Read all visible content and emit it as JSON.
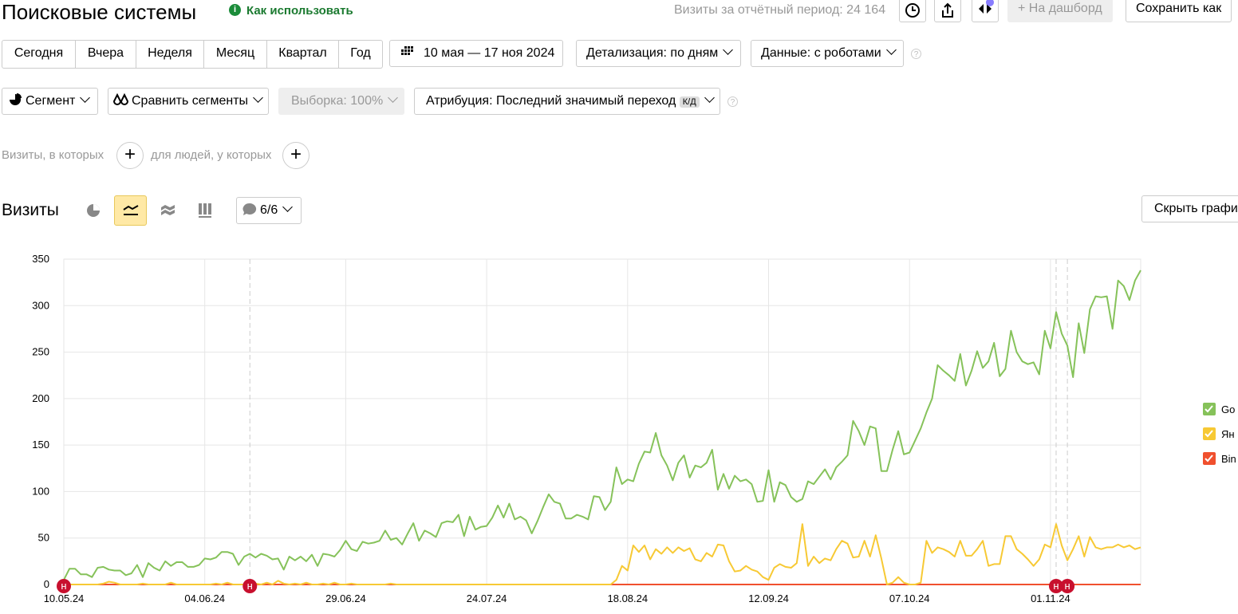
{
  "header": {
    "title": "Поисковые системы",
    "help": "Как использовать",
    "visits": "Визиты за отчётный период: 24 164",
    "dashboard": "На дашборд",
    "save": "Сохранить как"
  },
  "toolbar": {
    "periods": [
      "Сегодня",
      "Вчера",
      "Неделя",
      "Месяц",
      "Квартал",
      "Год"
    ],
    "dates": "10 мая — 17 ноя 2024",
    "detail": "Детализация: по дням",
    "robots": "Данные: с роботами"
  },
  "segments": {
    "segment": "Сегмент",
    "compare": "Сравнить сегменты",
    "sample": "Выборка: 100%",
    "attribution": "Атрибуция: Последний значимый переход",
    "badge": "К/Д"
  },
  "filters": {
    "visits": "Визиты, в которых",
    "people": "для людей, у которых"
  },
  "panel": {
    "title": "Визиты",
    "notes": "6/6",
    "hide": "Скрыть графи"
  },
  "chart_data": {
    "type": "line",
    "categories": [
      "10.05.24",
      null,
      null,
      null,
      null,
      null,
      null,
      null,
      null,
      null,
      null,
      null,
      null,
      null,
      null,
      null,
      null,
      null,
      null,
      null,
      null,
      null,
      null,
      null,
      null,
      "04.06.24",
      null,
      null,
      null,
      null,
      null,
      null,
      null,
      null,
      null,
      null,
      null,
      null,
      null,
      null,
      null,
      null,
      null,
      null,
      null,
      null,
      null,
      null,
      null,
      null,
      "29.06.24",
      null,
      null,
      null,
      null,
      null,
      null,
      null,
      null,
      null,
      null,
      null,
      null,
      null,
      null,
      null,
      null,
      null,
      null,
      null,
      null,
      null,
      null,
      null,
      null,
      "24.07.24",
      null,
      null,
      null,
      null,
      null,
      null,
      null,
      null,
      null,
      null,
      null,
      null,
      null,
      null,
      null,
      null,
      null,
      null,
      null,
      null,
      null,
      null,
      null,
      null,
      "18.08.24",
      null,
      null,
      null,
      null,
      null,
      null,
      null,
      null,
      null,
      null,
      null,
      null,
      null,
      null,
      null,
      null,
      null,
      null,
      null,
      null,
      null,
      null,
      null,
      null,
      "12.09.24",
      null,
      null,
      null,
      null,
      null,
      null,
      null,
      null,
      null,
      null,
      null,
      null,
      null,
      null,
      null,
      null,
      null,
      null,
      null,
      null,
      null,
      null,
      null,
      null,
      "07.10.24",
      null,
      null,
      null,
      null,
      null,
      null,
      null,
      null,
      null,
      null,
      null,
      null,
      null,
      null,
      null,
      null,
      null,
      null,
      null,
      null,
      null,
      null,
      null,
      null,
      "01.11.24",
      null,
      null,
      null,
      null,
      null,
      null,
      null,
      null,
      null,
      null,
      null,
      null,
      null,
      null,
      null,
      null
    ],
    "series": [
      {
        "name": "Go",
        "color": "#86c25a",
        "values": [
          5,
          17,
          17,
          11,
          11,
          8,
          18,
          19,
          16,
          15,
          15,
          10,
          12,
          21,
          8,
          23,
          18,
          15,
          25,
          20,
          24,
          24,
          19,
          19,
          21,
          28,
          27,
          29,
          35,
          35,
          33,
          21,
          30,
          33,
          29,
          33,
          31,
          27,
          28,
          16,
          30,
          26,
          30,
          25,
          32,
          20,
          33,
          32,
          30,
          37,
          47,
          38,
          36,
          46,
          44,
          45,
          47,
          58,
          48,
          50,
          43,
          55,
          66,
          47,
          58,
          55,
          51,
          66,
          68,
          67,
          75,
          52,
          73,
          59,
          62,
          63,
          72,
          85,
          72,
          87,
          70,
          73,
          69,
          55,
          68,
          83,
          97,
          89,
          87,
          71,
          71,
          75,
          73,
          70,
          95,
          94,
          80,
          89,
          126,
          108,
          113,
          111,
          130,
          143,
          142,
          163,
          139,
          128,
          112,
          131,
          139,
          115,
          128,
          126,
          131,
          145,
          102,
          119,
          103,
          117,
          111,
          113,
          108,
          89,
          90,
          123,
          89,
          110,
          107,
          94,
          89,
          92,
          111,
          108,
          116,
          124,
          113,
          126,
          132,
          139,
          176,
          165,
          150,
          170,
          168,
          122,
          122,
          145,
          165,
          140,
          142,
          155,
          168,
          185,
          200,
          236,
          230,
          225,
          219,
          248,
          214,
          230,
          251,
          233,
          240,
          260,
          224,
          232,
          273,
          250,
          240,
          237,
          239,
          226,
          273,
          254,
          293,
          270,
          257,
          223,
          281,
          249,
          296,
          310,
          309,
          310,
          275,
          327,
          321,
          306,
          327,
          338
        ]
      },
      {
        "name": "Ян",
        "color": "#f7c934",
        "values": [
          0,
          0,
          0,
          0,
          0,
          0,
          0,
          1,
          3,
          2,
          0,
          0,
          0,
          0,
          1,
          0,
          0,
          0,
          0,
          2,
          0,
          0,
          0,
          0,
          0,
          0,
          0,
          1,
          0,
          2,
          0,
          0,
          0,
          0,
          1,
          0,
          2,
          0,
          4,
          1,
          0,
          1,
          0,
          2,
          0,
          0,
          1,
          0,
          2,
          0,
          0,
          1,
          0,
          0,
          0,
          0,
          0,
          0,
          1,
          0,
          0,
          0,
          0,
          0,
          0,
          0,
          0,
          0,
          0,
          0,
          0,
          0,
          0,
          0,
          0,
          0,
          0,
          0,
          0,
          0,
          0,
          0,
          0,
          0,
          0,
          0,
          0,
          0,
          0,
          0,
          0,
          0,
          0,
          0,
          0,
          0,
          0,
          0,
          5,
          20,
          15,
          42,
          35,
          42,
          27,
          38,
          33,
          40,
          34,
          40,
          36,
          39,
          27,
          25,
          34,
          30,
          43,
          42,
          25,
          14,
          15,
          20,
          16,
          14,
          8,
          5,
          18,
          22,
          19,
          18,
          23,
          65,
          20,
          30,
          23,
          28,
          26,
          38,
          47,
          44,
          29,
          30,
          47,
          30,
          53,
          28,
          0,
          2,
          8,
          2,
          0,
          0,
          2,
          47,
          34,
          40,
          38,
          35,
          30,
          47,
          31,
          31,
          38,
          47,
          20,
          22,
          22,
          52,
          52,
          38,
          33,
          27,
          20,
          27,
          43,
          40,
          65,
          42,
          26,
          38,
          52,
          30,
          51,
          40,
          38,
          40,
          40,
          43,
          40,
          42,
          38,
          40
        ]
      },
      {
        "name": "Bin",
        "color": "#f0502e",
        "values": [
          0,
          0,
          0,
          0,
          0,
          0,
          0,
          0,
          0,
          0,
          0,
          0,
          0,
          0,
          0,
          0,
          0,
          0,
          0,
          0,
          0,
          0,
          0,
          0,
          0,
          0,
          0,
          0,
          0,
          0,
          0,
          0,
          0,
          0,
          0,
          0,
          0,
          0,
          0,
          0,
          0,
          0,
          0,
          0,
          0,
          0,
          0,
          0,
          0,
          0,
          0,
          0,
          0,
          0,
          0,
          0,
          0,
          0,
          0,
          0,
          0,
          0,
          0,
          0,
          0,
          0,
          0,
          0,
          0,
          0,
          0,
          0,
          0,
          0,
          0,
          0,
          0,
          0,
          0,
          0,
          0,
          0,
          0,
          0,
          0,
          0,
          0,
          0,
          0,
          0,
          0,
          0,
          0,
          0,
          0,
          0,
          0,
          0,
          0,
          0,
          0,
          0,
          0,
          0,
          0,
          0,
          0,
          0,
          0,
          0,
          0,
          0,
          0,
          0,
          0,
          0,
          0,
          0,
          0,
          0,
          0,
          0,
          0,
          0,
          0,
          0,
          0,
          0,
          0,
          0,
          0,
          0,
          0,
          0,
          0,
          0,
          0,
          0,
          0,
          0,
          0,
          0,
          0,
          0,
          0,
          0,
          0,
          0,
          0,
          0,
          0,
          0,
          0,
          0,
          0,
          0,
          0,
          0,
          0,
          0,
          0,
          0,
          0,
          0,
          0,
          0,
          0,
          0,
          0,
          0,
          0,
          0,
          0,
          0,
          0,
          0,
          0,
          0,
          0,
          0,
          0,
          0,
          0,
          0,
          0,
          0,
          0,
          0,
          0,
          0,
          0,
          0
        ]
      }
    ],
    "ylim": [
      0,
      350
    ],
    "yticks": [
      0,
      50,
      100,
      150,
      200,
      250,
      300,
      350
    ],
    "grid": true,
    "legend": "right",
    "events": [
      {
        "at": 0,
        "label": "н"
      },
      {
        "at": 33,
        "label": "н"
      },
      {
        "at": 176,
        "label": "н"
      },
      {
        "at": 178,
        "label": "н"
      }
    ]
  }
}
